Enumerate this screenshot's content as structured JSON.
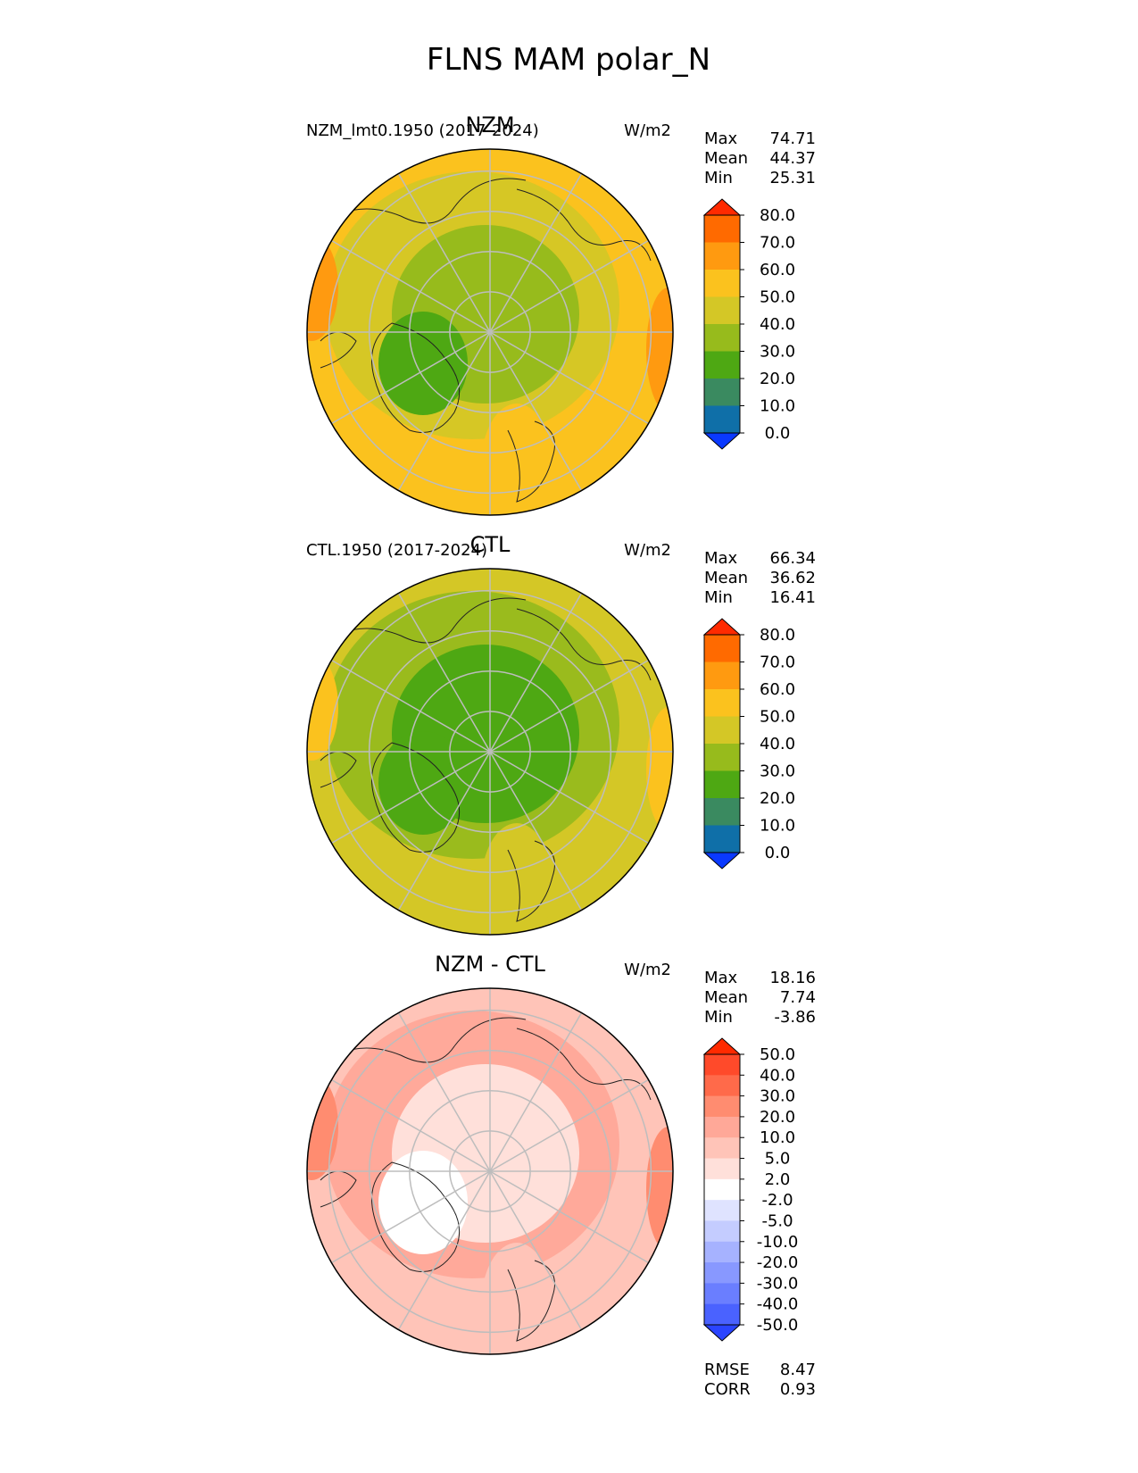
{
  "title": "FLNS MAM polar_N",
  "chart_data": [
    {
      "type": "heatmap",
      "projection": "north-polar-stereographic",
      "title": "NZM",
      "subtitle_left": "NZM_lmt0.1950 (2017-2024)",
      "units": "W/m2",
      "stats": [
        {
          "label": "Max",
          "value": "74.71"
        },
        {
          "label": "Mean",
          "value": "44.37"
        },
        {
          "label": "Min",
          "value": "25.31"
        }
      ],
      "colorbar": {
        "extend": "both",
        "ticks": [
          "80.0",
          "70.0",
          "60.0",
          "50.0",
          "40.0",
          "30.0",
          "20.0",
          "10.0",
          "0.0"
        ],
        "colors": [
          "#ff2a00",
          "#ff6a00",
          "#ff9a10",
          "#fbc21e",
          "#d4c726",
          "#97bb1c",
          "#4ea813",
          "#3a8a60",
          "#0f6fa8",
          "#0a39ff"
        ]
      },
      "field_colors": {
        "ocean": "#fbc21e",
        "midlat": "#d4c726",
        "arctic": "#97bb1c",
        "ice": "#4ea813",
        "warm": "#ff9a10"
      },
      "colorbar_tick_values": [
        80,
        70,
        60,
        50,
        40,
        30,
        20,
        10,
        0
      ]
    },
    {
      "type": "heatmap",
      "projection": "north-polar-stereographic",
      "title": "CTL",
      "subtitle_left": "CTL.1950 (2017-2024)",
      "units": "W/m2",
      "stats": [
        {
          "label": "Max",
          "value": "66.34"
        },
        {
          "label": "Mean",
          "value": "36.62"
        },
        {
          "label": "Min",
          "value": "16.41"
        }
      ],
      "colorbar": {
        "extend": "both",
        "ticks": [
          "80.0",
          "70.0",
          "60.0",
          "50.0",
          "40.0",
          "30.0",
          "20.0",
          "10.0",
          "0.0"
        ],
        "colors": [
          "#ff2a00",
          "#ff6a00",
          "#ff9a10",
          "#fbc21e",
          "#d4c726",
          "#97bb1c",
          "#4ea813",
          "#3a8a60",
          "#0f6fa8",
          "#0a39ff"
        ]
      },
      "field_colors": {
        "ocean": "#d4c726",
        "midlat": "#97bb1c",
        "arctic": "#4ea813",
        "ice": "#4ea813",
        "warm": "#fbc21e"
      },
      "colorbar_tick_values": [
        80,
        70,
        60,
        50,
        40,
        30,
        20,
        10,
        0
      ]
    },
    {
      "type": "heatmap",
      "projection": "north-polar-stereographic",
      "title": "NZM - CTL",
      "subtitle_left": "",
      "units": "W/m2",
      "stats": [
        {
          "label": "Max",
          "value": "18.16"
        },
        {
          "label": "Mean",
          "value": "7.74"
        },
        {
          "label": "Min",
          "value": "-3.86"
        }
      ],
      "colorbar": {
        "extend": "both",
        "ticks": [
          "50.0",
          "40.0",
          "30.0",
          "20.0",
          "10.0",
          "5.0",
          "2.0",
          "-2.0",
          "-5.0",
          "-10.0",
          "-20.0",
          "-30.0",
          "-40.0",
          "-50.0"
        ],
        "colors": [
          "#ff2a00",
          "#ff4a2a",
          "#ff6a4a",
          "#ff8c70",
          "#ffa898",
          "#ffc4b8",
          "#ffe0da",
          "#ffffff",
          "#dfe3ff",
          "#c4ccff",
          "#a6b2ff",
          "#8898ff",
          "#6a7eff",
          "#4a62ff",
          "#2a44ff"
        ]
      },
      "field_colors": {
        "ocean": "#ffc4b8",
        "midlat": "#ffa898",
        "arctic": "#ffe0da",
        "ice": "#ffffff",
        "warm": "#ff8c70"
      },
      "colorbar_tick_values": [
        50,
        40,
        30,
        20,
        10,
        5,
        2,
        -2,
        -5,
        -10,
        -20,
        -30,
        -40,
        -50
      ],
      "metrics": [
        {
          "label": "RMSE",
          "value": "8.47"
        },
        {
          "label": "CORR",
          "value": "0.93"
        }
      ]
    }
  ]
}
